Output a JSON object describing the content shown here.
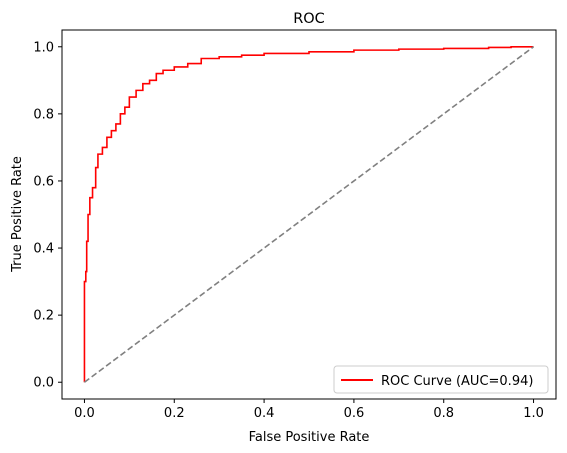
{
  "chart_data": {
    "type": "line",
    "title": "ROC",
    "xlabel": "False Positive Rate",
    "ylabel": "True Positive Rate",
    "xlim": [
      -0.05,
      1.05
    ],
    "ylim": [
      -0.05,
      1.05
    ],
    "xticks": [
      "0.0",
      "0.2",
      "0.4",
      "0.6",
      "0.8",
      "1.0"
    ],
    "yticks": [
      "0.0",
      "0.2",
      "0.4",
      "0.6",
      "0.8",
      "1.0"
    ],
    "grid": false,
    "legend_position": "lower-right",
    "colors": {
      "roc": "#ff0000",
      "chance": "#808080"
    },
    "series": [
      {
        "name": "ROC Curve (AUC=0.94)",
        "style": "solid",
        "x": [
          0.0,
          0.0,
          0.003,
          0.003,
          0.005,
          0.005,
          0.008,
          0.008,
          0.012,
          0.012,
          0.018,
          0.018,
          0.025,
          0.025,
          0.03,
          0.03,
          0.04,
          0.04,
          0.05,
          0.05,
          0.06,
          0.06,
          0.07,
          0.07,
          0.08,
          0.08,
          0.09,
          0.09,
          0.1,
          0.1,
          0.115,
          0.115,
          0.13,
          0.13,
          0.145,
          0.145,
          0.16,
          0.16,
          0.175,
          0.175,
          0.2,
          0.2,
          0.23,
          0.23,
          0.26,
          0.26,
          0.3,
          0.3,
          0.35,
          0.35,
          0.4,
          0.4,
          0.5,
          0.5,
          0.6,
          0.6,
          0.7,
          0.7,
          0.8,
          0.8,
          0.9,
          0.9,
          0.95,
          0.95,
          1.0
        ],
        "y": [
          0.0,
          0.3,
          0.3,
          0.33,
          0.33,
          0.42,
          0.42,
          0.5,
          0.5,
          0.55,
          0.55,
          0.58,
          0.58,
          0.64,
          0.64,
          0.68,
          0.68,
          0.7,
          0.7,
          0.73,
          0.73,
          0.75,
          0.75,
          0.77,
          0.77,
          0.8,
          0.8,
          0.82,
          0.82,
          0.85,
          0.85,
          0.87,
          0.87,
          0.89,
          0.89,
          0.9,
          0.9,
          0.92,
          0.92,
          0.93,
          0.93,
          0.94,
          0.94,
          0.95,
          0.95,
          0.965,
          0.965,
          0.97,
          0.97,
          0.975,
          0.975,
          0.98,
          0.98,
          0.985,
          0.985,
          0.99,
          0.99,
          0.993,
          0.993,
          0.995,
          0.995,
          0.998,
          0.998,
          1.0,
          1.0
        ]
      },
      {
        "name": "",
        "style": "dashed",
        "x": [
          0.0,
          1.0
        ],
        "y": [
          0.0,
          1.0
        ]
      }
    ]
  }
}
